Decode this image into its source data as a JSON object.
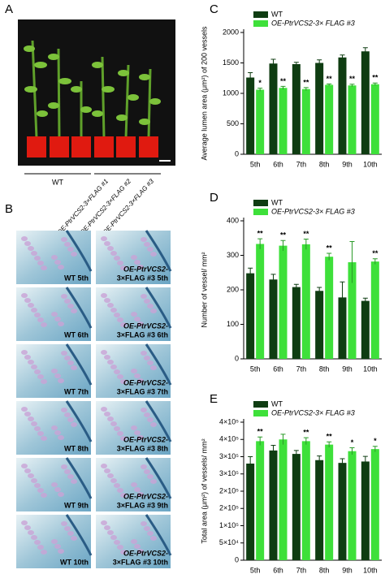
{
  "panels": {
    "a": {
      "label": "A",
      "wt_label": "WT",
      "lines": [
        "OE-PtrVCS2-3×FLAG #1",
        "OE-PtrVCS2-3×FLAG #2",
        "OE-PtrVCS2-3×FLAG #3"
      ]
    },
    "b": {
      "label": "B",
      "captions": [
        [
          "WT 5th"
        ],
        [
          "OE-PtrVCS2-",
          "3×FLAG #3 5th"
        ],
        [
          "WT 6th"
        ],
        [
          "OE-PtrVCS2-",
          "3×FLAG #3 6th"
        ],
        [
          "WT 7th"
        ],
        [
          "OE-PtrVCS2-",
          "3×FLAG #3 7th"
        ],
        [
          "WT 8th"
        ],
        [
          "OE-PtrVCS2-",
          "3×FLAG #3 8th"
        ],
        [
          "WT 9th"
        ],
        [
          "OE-PtrVCS2-",
          "3×FLAG #3 9th"
        ],
        [
          "WT 10th"
        ],
        [
          "OE-PtrVCS2-",
          "3×FLAG #3 10th"
        ]
      ]
    }
  },
  "chart_data": [
    {
      "type": "bar",
      "panel_label": "C",
      "ylabel": "Average lumen area (μm²) of 200 vessels",
      "categories": [
        "5th",
        "6th",
        "7th",
        "8th",
        "9th",
        "10th"
      ],
      "series": [
        {
          "name": "WT",
          "color": "#0f3d12",
          "values": [
            1260,
            1490,
            1480,
            1500,
            1590,
            1690
          ],
          "errors": [
            80,
            70,
            30,
            50,
            40,
            60
          ]
        },
        {
          "name": "OE-PtrVCS2-3× FLAG #3",
          "color": "#3ee03a",
          "values": [
            1060,
            1090,
            1070,
            1140,
            1130,
            1150
          ],
          "errors": [
            25,
            25,
            25,
            15,
            20,
            20
          ],
          "significance": [
            "*",
            "**",
            "**",
            "**",
            "**",
            "**"
          ]
        }
      ],
      "ylim": [
        0,
        2000
      ],
      "yticks": [
        0,
        500,
        1000,
        1500,
        2000
      ],
      "legend": "upper left"
    },
    {
      "type": "bar",
      "panel_label": "D",
      "ylabel": "Number of vessel/ mm²",
      "categories": [
        "5th",
        "6th",
        "7th",
        "8th",
        "9th",
        "10th"
      ],
      "series": [
        {
          "name": "WT",
          "color": "#0f3d12",
          "values": [
            248,
            230,
            208,
            197,
            178,
            168
          ],
          "errors": [
            15,
            15,
            8,
            10,
            45,
            8
          ]
        },
        {
          "name": "OE-PtrVCS2-3× FLAG #3",
          "color": "#3ee03a",
          "values": [
            333,
            328,
            332,
            296,
            280,
            282
          ],
          "errors": [
            15,
            15,
            15,
            10,
            60,
            8
          ],
          "significance": [
            "**",
            "**",
            "**",
            "**",
            null,
            "**"
          ]
        }
      ],
      "ylim": [
        0,
        400
      ],
      "yticks": [
        0,
        100,
        200,
        300,
        400
      ],
      "legend": "upper left"
    },
    {
      "type": "bar",
      "panel_label": "E",
      "ylabel": "Total area (μm²) of vessels/ mm²",
      "categories": [
        "5th",
        "6th",
        "7th",
        "8th",
        "9th",
        "10th"
      ],
      "series": [
        {
          "name": "WT",
          "color": "#0f3d12",
          "values": [
            280000,
            318000,
            308000,
            290000,
            282000,
            286000
          ],
          "errors": [
            20000,
            15000,
            10000,
            12000,
            12000,
            15000
          ]
        },
        {
          "name": "OE-PtrVCS2-3× FLAG #3",
          "color": "#3ee03a",
          "values": [
            345000,
            350000,
            345000,
            335000,
            316000,
            322000
          ],
          "errors": [
            12000,
            15000,
            10000,
            8000,
            10000,
            8000
          ],
          "significance": [
            "**",
            null,
            "**",
            "**",
            "*",
            "*"
          ]
        }
      ],
      "ylim": [
        0,
        400000
      ],
      "yticks": [
        0,
        {
          "value": 50000,
          "label": "5×10⁴"
        },
        {
          "value": 100000,
          "label": "1×10⁵"
        },
        {
          "value": 150000,
          "label": "2×10⁵"
        },
        {
          "value": 200000,
          "label": "2×10⁵"
        },
        {
          "value": 250000,
          "label": "3×10⁵"
        },
        {
          "value": 300000,
          "label": "3×10⁵"
        },
        {
          "value": 350000,
          "label": "4×10⁵"
        },
        {
          "value": 400000,
          "label": "4×10⁵"
        }
      ],
      "legend": "upper left"
    }
  ]
}
